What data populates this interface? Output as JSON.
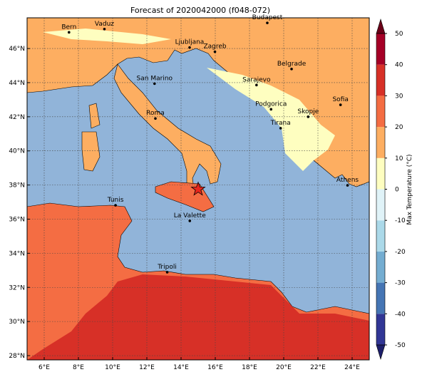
{
  "title": "Forecast of 2020042000 (f048-072)",
  "map": {
    "xlim": [
      5,
      25
    ],
    "ylim": [
      27.75,
      47.8
    ],
    "lon_ticks": [
      {
        "value": 6,
        "label": "6°E"
      },
      {
        "value": 8,
        "label": "8°E"
      },
      {
        "value": 10,
        "label": "10°E"
      },
      {
        "value": 12,
        "label": "12°E"
      },
      {
        "value": 14,
        "label": "14°E"
      },
      {
        "value": 16,
        "label": "16°E"
      },
      {
        "value": 18,
        "label": "18°E"
      },
      {
        "value": 20,
        "label": "20°E"
      },
      {
        "value": 22,
        "label": "22°E"
      },
      {
        "value": 24,
        "label": "24°E"
      }
    ],
    "lat_ticks": [
      {
        "value": 28,
        "label": "28°N"
      },
      {
        "value": 30,
        "label": "30°N"
      },
      {
        "value": 32,
        "label": "32°N"
      },
      {
        "value": 34,
        "label": "34°N"
      },
      {
        "value": 36,
        "label": "36°N"
      },
      {
        "value": 38,
        "label": "38°N"
      },
      {
        "value": 40,
        "label": "40°N"
      },
      {
        "value": 42,
        "label": "42°N"
      },
      {
        "value": 44,
        "label": "44°N"
      },
      {
        "value": 46,
        "label": "46°N"
      }
    ],
    "grid": true,
    "cities": [
      {
        "name": "Bern",
        "lon": 7.45,
        "lat": 46.95
      },
      {
        "name": "Vaduz",
        "lon": 9.52,
        "lat": 47.14
      },
      {
        "name": "Budapest",
        "lon": 19.04,
        "lat": 47.5
      },
      {
        "name": "Ljubljana",
        "lon": 14.5,
        "lat": 46.06
      },
      {
        "name": "Zagreb",
        "lon": 15.98,
        "lat": 45.81
      },
      {
        "name": "Belgrade",
        "lon": 20.46,
        "lat": 44.8
      },
      {
        "name": "San Marino",
        "lon": 12.45,
        "lat": 43.94
      },
      {
        "name": "Sarajevo",
        "lon": 18.41,
        "lat": 43.86
      },
      {
        "name": "Sofia",
        "lon": 23.32,
        "lat": 42.7
      },
      {
        "name": "Roma",
        "lon": 12.5,
        "lat": 41.9
      },
      {
        "name": "Podgorica",
        "lon": 19.26,
        "lat": 42.44
      },
      {
        "name": "Skopje",
        "lon": 21.43,
        "lat": 42.0
      },
      {
        "name": "Tirana",
        "lon": 19.82,
        "lat": 41.33
      },
      {
        "name": "Athens",
        "lon": 23.73,
        "lat": 37.98
      },
      {
        "name": "Tunis",
        "lon": 10.17,
        "lat": 36.81
      },
      {
        "name": "La Valette",
        "lon": 14.51,
        "lat": 35.9
      },
      {
        "name": "Tripoli",
        "lon": 13.19,
        "lat": 32.89
      }
    ],
    "marker": {
      "lon": 15.0,
      "lat": 37.75,
      "color": "#e8261c"
    }
  },
  "colorbar": {
    "label": "Max Temperature (°C)",
    "ticks": [
      -50,
      -40,
      -30,
      -20,
      -10,
      0,
      10,
      20,
      30,
      40,
      50
    ],
    "colors": [
      "#313695",
      "#4575b4",
      "#74add1",
      "#abd9e9",
      "#e0f3f8",
      "#fefec0",
      "#fdae61",
      "#f46d43",
      "#d73027",
      "#a50026"
    ],
    "under_color": "#1d1f6b",
    "over_color": "#6b0018"
  }
}
